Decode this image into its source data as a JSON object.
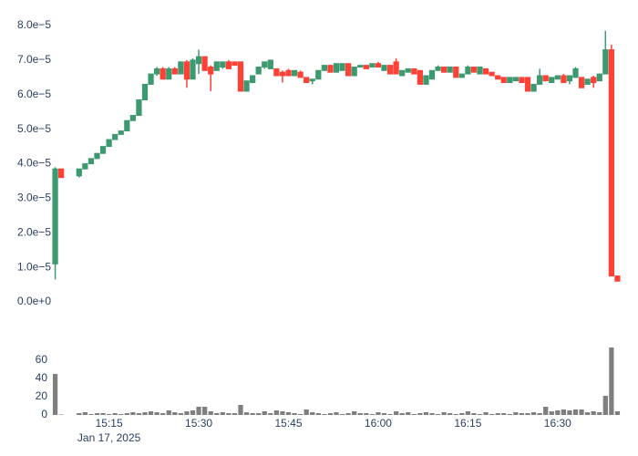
{
  "chart_data": [
    {
      "type": "candlestick",
      "x": [
        "15:06",
        "15:07",
        "15:10",
        "15:11",
        "15:12",
        "15:13",
        "15:14",
        "15:15",
        "15:16",
        "15:17",
        "15:18",
        "15:19",
        "15:20",
        "15:21",
        "15:22",
        "15:23",
        "15:24",
        "15:25",
        "15:26",
        "15:27",
        "15:28",
        "15:29",
        "15:30",
        "15:31",
        "15:32",
        "15:33",
        "15:34",
        "15:35",
        "15:36",
        "15:37",
        "15:38",
        "15:39",
        "15:40",
        "15:41",
        "15:42",
        "15:43",
        "15:44",
        "15:45",
        "15:46",
        "15:47",
        "15:48",
        "15:49",
        "15:50",
        "15:51",
        "15:52",
        "15:53",
        "15:54",
        "15:55",
        "15:56",
        "15:57",
        "15:58",
        "15:59",
        "16:00",
        "16:01",
        "16:02",
        "16:03",
        "16:04",
        "16:05",
        "16:06",
        "16:07",
        "16:08",
        "16:09",
        "16:10",
        "16:11",
        "16:12",
        "16:13",
        "16:14",
        "16:15",
        "16:16",
        "16:17",
        "16:18",
        "16:19",
        "16:20",
        "16:21",
        "16:22",
        "16:23",
        "16:24",
        "16:25",
        "16:26",
        "16:27",
        "16:28",
        "16:29",
        "16:30",
        "16:31",
        "16:32",
        "16:33",
        "16:34",
        "16:35",
        "16:36",
        "16:37",
        "16:38",
        "16:39",
        "16:40"
      ],
      "open": [
        1.1e-05,
        3.85e-05,
        3.65e-05,
        3.85e-05,
        4e-05,
        4.15e-05,
        4.3e-05,
        4.5e-05,
        4.7e-05,
        4.85e-05,
        4.95e-05,
        5.25e-05,
        5.4e-05,
        5.85e-05,
        6.3e-05,
        6.6e-05,
        6.75e-05,
        6.45e-05,
        6.75e-05,
        6.6e-05,
        6.95e-05,
        6.45e-05,
        6.9e-05,
        7.1e-05,
        6.8e-05,
        6.7e-05,
        6.8e-05,
        6.95e-05,
        6.95e-05,
        6.95e-05,
        6.1e-05,
        6.35e-05,
        6.6e-05,
        6.8e-05,
        6.75e-05,
        6.75e-05,
        6.65e-05,
        6.7e-05,
        6.55e-05,
        6.65e-05,
        6.5e-05,
        6.4e-05,
        6.45e-05,
        6.7e-05,
        6.85e-05,
        6.65e-05,
        6.7e-05,
        6.9e-05,
        6.55e-05,
        6.8e-05,
        6.85e-05,
        6.8e-05,
        6.9e-05,
        6.7e-05,
        6.85e-05,
        6.95e-05,
        6.55e-05,
        6.65e-05,
        6.75e-05,
        6.7e-05,
        6.3e-05,
        6.45e-05,
        6.7e-05,
        6.8e-05,
        6.65e-05,
        6.8e-05,
        6.5e-05,
        6.6e-05,
        6.8e-05,
        6.6e-05,
        6.75e-05,
        6.65e-05,
        6.55e-05,
        6.5e-05,
        6.35e-05,
        6.4e-05,
        6.5e-05,
        6.5e-05,
        6.1e-05,
        6.3e-05,
        6.55e-05,
        6.35e-05,
        6.45e-05,
        6.55e-05,
        6.4e-05,
        6.5e-05,
        6.5e-05,
        6.3e-05,
        6.5e-05,
        6.4e-05,
        6.6e-05,
        7.3e-05,
        7.5e-06
      ],
      "high": [
        3.9e-05,
        3.85e-05,
        3.85e-05,
        4e-05,
        4.15e-05,
        4.3e-05,
        4.5e-05,
        4.7e-05,
        4.85e-05,
        4.95e-05,
        5.25e-05,
        5.4e-05,
        5.85e-05,
        6.3e-05,
        6.6e-05,
        6.8e-05,
        6.8e-05,
        6.8e-05,
        6.8e-05,
        6.95e-05,
        7e-05,
        7.05e-05,
        7.3e-05,
        7.1e-05,
        6.85e-05,
        6.95e-05,
        6.95e-05,
        7e-05,
        6.95e-05,
        6.95e-05,
        6.4e-05,
        6.55e-05,
        6.8e-05,
        6.95e-05,
        7e-05,
        6.75e-05,
        6.7e-05,
        6.75e-05,
        6.7e-05,
        6.7e-05,
        6.5e-05,
        6.45e-05,
        6.7e-05,
        6.85e-05,
        6.85e-05,
        6.9e-05,
        6.9e-05,
        6.9e-05,
        6.8e-05,
        6.85e-05,
        6.85e-05,
        6.9e-05,
        6.95e-05,
        6.85e-05,
        6.85e-05,
        7.05e-05,
        6.7e-05,
        6.75e-05,
        6.75e-05,
        6.7e-05,
        6.55e-05,
        6.7e-05,
        6.85e-05,
        6.8e-05,
        6.8e-05,
        6.8e-05,
        6.6e-05,
        6.85e-05,
        6.8e-05,
        6.8e-05,
        6.75e-05,
        6.65e-05,
        6.55e-05,
        6.5e-05,
        6.5e-05,
        6.5e-05,
        6.5e-05,
        6.5e-05,
        6.3e-05,
        6.75e-05,
        6.55e-05,
        6.5e-05,
        6.55e-05,
        6.6e-05,
        6.55e-05,
        6.8e-05,
        6.5e-05,
        6.45e-05,
        6.55e-05,
        6.6e-05,
        7.85e-05,
        7.45e-05,
        7.5e-06
      ],
      "low": [
        6.5e-06,
        3.6e-05,
        3.6e-05,
        3.85e-05,
        4e-05,
        4.15e-05,
        4.3e-05,
        4.5e-05,
        4.7e-05,
        4.85e-05,
        4.95e-05,
        5.25e-05,
        5.4e-05,
        5.85e-05,
        6.3e-05,
        6.55e-05,
        6.45e-05,
        6.45e-05,
        6.6e-05,
        6.6e-05,
        6.2e-05,
        6.45e-05,
        6.6e-05,
        6.7e-05,
        6.1e-05,
        6.7e-05,
        6.75e-05,
        6.75e-05,
        6.85e-05,
        6.1e-05,
        6.1e-05,
        6.35e-05,
        6.6e-05,
        6.75e-05,
        6.75e-05,
        6.55e-05,
        6.35e-05,
        6.55e-05,
        6.55e-05,
        6.5e-05,
        6.35e-05,
        6.3e-05,
        6.45e-05,
        6.7e-05,
        6.65e-05,
        6.65e-05,
        6.7e-05,
        6.55e-05,
        6.55e-05,
        6.8e-05,
        6.75e-05,
        6.8e-05,
        6.8e-05,
        6.7e-05,
        6.6e-05,
        6.6e-05,
        6.55e-05,
        6.65e-05,
        6.6e-05,
        6.3e-05,
        6.3e-05,
        6.45e-05,
        6.7e-05,
        6.65e-05,
        6.65e-05,
        6.5e-05,
        6.5e-05,
        6.6e-05,
        6.65e-05,
        6.6e-05,
        6.6e-05,
        6.55e-05,
        6.45e-05,
        6.35e-05,
        6.35e-05,
        6.4e-05,
        6.35e-05,
        6.1e-05,
        6.1e-05,
        6.3e-05,
        6.4e-05,
        6.35e-05,
        6.45e-05,
        6.35e-05,
        6.3e-05,
        6.5e-05,
        6.2e-05,
        6.3e-05,
        6.2e-05,
        6.4e-05,
        6.6e-05,
        7.5e-06,
        6e-06
      ],
      "close": [
        3.85e-05,
        3.6e-05,
        3.85e-05,
        4e-05,
        4.15e-05,
        4.3e-05,
        4.5e-05,
        4.7e-05,
        4.85e-05,
        4.95e-05,
        5.25e-05,
        5.4e-05,
        5.85e-05,
        6.3e-05,
        6.6e-05,
        6.75e-05,
        6.45e-05,
        6.75e-05,
        6.6e-05,
        6.95e-05,
        6.45e-05,
        7e-05,
        7.1e-05,
        6.7e-05,
        6.6e-05,
        6.95e-05,
        6.95e-05,
        6.75e-05,
        6.85e-05,
        6.1e-05,
        6.4e-05,
        6.55e-05,
        6.8e-05,
        6.95e-05,
        7e-05,
        6.55e-05,
        6.55e-05,
        6.55e-05,
        6.7e-05,
        6.5e-05,
        6.35e-05,
        6.45e-05,
        6.7e-05,
        6.85e-05,
        6.65e-05,
        6.9e-05,
        6.9e-05,
        6.55e-05,
        6.8e-05,
        6.85e-05,
        6.75e-05,
        6.9e-05,
        6.8e-05,
        6.85e-05,
        6.6e-05,
        6.6e-05,
        6.7e-05,
        6.75e-05,
        6.6e-05,
        6.3e-05,
        6.55e-05,
        6.7e-05,
        6.8e-05,
        6.65e-05,
        6.8e-05,
        6.5e-05,
        6.6e-05,
        6.8e-05,
        6.65e-05,
        6.8e-05,
        6.6e-05,
        6.55e-05,
        6.45e-05,
        6.35e-05,
        6.5e-05,
        6.5e-05,
        6.35e-05,
        6.1e-05,
        6.3e-05,
        6.55e-05,
        6.4e-05,
        6.5e-05,
        6.55e-05,
        6.35e-05,
        6.55e-05,
        6.75e-05,
        6.2e-05,
        6.45e-05,
        6.35e-05,
        6.6e-05,
        7.3e-05,
        7.5e-06,
        6e-06
      ],
      "increasing_color": "#3d9970",
      "decreasing_color": "#ff4136",
      "xlim": [
        "15:05",
        "16:41"
      ],
      "ylim": [
        -2e-06,
        8.2e-05
      ],
      "yticks": [
        {
          "value": 0,
          "label": "0.0e+0"
        },
        {
          "value": 1e-05,
          "label": "1.0e−5"
        },
        {
          "value": 2e-05,
          "label": "2.0e−5"
        },
        {
          "value": 3e-05,
          "label": "3.0e−5"
        },
        {
          "value": 4e-05,
          "label": "4.0e−5"
        },
        {
          "value": 5e-05,
          "label": "5.0e−5"
        },
        {
          "value": 6e-05,
          "label": "6.0e−5"
        },
        {
          "value": 7e-05,
          "label": "7.0e−5"
        },
        {
          "value": 8e-05,
          "label": "8.0e−5"
        }
      ]
    },
    {
      "type": "bar",
      "x": [
        "15:06",
        "15:07",
        "15:10",
        "15:11",
        "15:12",
        "15:13",
        "15:14",
        "15:15",
        "15:16",
        "15:17",
        "15:18",
        "15:19",
        "15:20",
        "15:21",
        "15:22",
        "15:23",
        "15:24",
        "15:25",
        "15:26",
        "15:27",
        "15:28",
        "15:29",
        "15:30",
        "15:31",
        "15:32",
        "15:33",
        "15:34",
        "15:35",
        "15:36",
        "15:37",
        "15:38",
        "15:39",
        "15:40",
        "15:41",
        "15:42",
        "15:43",
        "15:44",
        "15:45",
        "15:46",
        "15:47",
        "15:48",
        "15:49",
        "15:50",
        "15:51",
        "15:52",
        "15:53",
        "15:54",
        "15:55",
        "15:56",
        "15:57",
        "15:58",
        "15:59",
        "16:00",
        "16:01",
        "16:02",
        "16:03",
        "16:04",
        "16:05",
        "16:06",
        "16:07",
        "16:08",
        "16:09",
        "16:10",
        "16:11",
        "16:12",
        "16:13",
        "16:14",
        "16:15",
        "16:16",
        "16:17",
        "16:18",
        "16:19",
        "16:20",
        "16:21",
        "16:22",
        "16:23",
        "16:24",
        "16:25",
        "16:26",
        "16:27",
        "16:28",
        "16:29",
        "16:30",
        "16:31",
        "16:32",
        "16:33",
        "16:34",
        "16:35",
        "16:36",
        "16:37",
        "16:38",
        "16:39",
        "16:40"
      ],
      "values": [
        45,
        0.5,
        2,
        3,
        1,
        2,
        2,
        1,
        2,
        1,
        2,
        3,
        2,
        3,
        4,
        3,
        2,
        5,
        3,
        2,
        4,
        5,
        9,
        9,
        4,
        2,
        3,
        2,
        2,
        11,
        3,
        2,
        2,
        4,
        2,
        5,
        4,
        3,
        2,
        1,
        6,
        3,
        2,
        1,
        2,
        3,
        1,
        2,
        4,
        2,
        2,
        1,
        3,
        2,
        1,
        4,
        2,
        3,
        1,
        2,
        3,
        2,
        1,
        3,
        2,
        1,
        2,
        4,
        2,
        1,
        3,
        1,
        2,
        2,
        1,
        3,
        2,
        2,
        3,
        2,
        9,
        4,
        5,
        6,
        5,
        6,
        6,
        3,
        4,
        3,
        21,
        74,
        4
      ],
      "color": "#7f7f7f",
      "xlim": [
        "15:05",
        "16:41"
      ],
      "xticks": [
        "15:15",
        "15:30",
        "15:45",
        "16:00",
        "16:15",
        "16:30"
      ],
      "x_date_label": "Jan 17, 2025",
      "ylim": [
        0,
        76
      ],
      "yticks": [
        0,
        20,
        40,
        60
      ]
    }
  ]
}
